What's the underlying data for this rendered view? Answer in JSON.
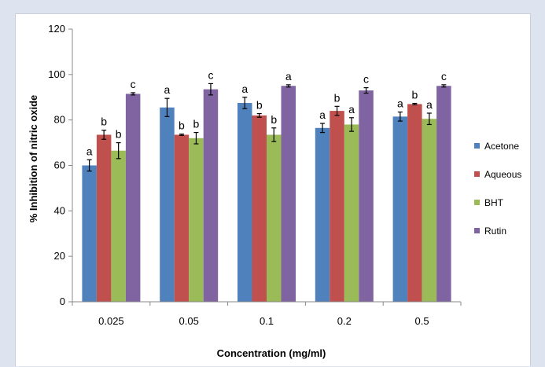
{
  "chart_data": {
    "type": "bar",
    "title": "",
    "xlabel": "Concentration (mg/ml)",
    "ylabel": "% Inhibition of nitric oxide",
    "ylim": [
      0,
      120
    ],
    "yticks": [
      0,
      20,
      40,
      60,
      80,
      100,
      120
    ],
    "grid": false,
    "legend_position": "right",
    "categories": [
      "0.025",
      "0.05",
      "0.1",
      "0.2",
      "0.5"
    ],
    "series": [
      {
        "name": "Acetone",
        "color": "#4f81bd",
        "values": [
          60,
          85.5,
          87.5,
          76.5,
          81.5
        ],
        "errors": [
          2.5,
          4,
          2.5,
          2,
          2
        ],
        "labels": [
          "a",
          "a",
          "a",
          "a",
          "a"
        ]
      },
      {
        "name": "Aqueous",
        "color": "#c0504d",
        "values": [
          73.5,
          73.5,
          82,
          84,
          87
        ],
        "errors": [
          2,
          0.3,
          0.8,
          2,
          0.3
        ],
        "labels": [
          "b",
          "b",
          "b",
          "b",
          "b"
        ]
      },
      {
        "name": "BHT",
        "color": "#9bbb59",
        "values": [
          66.5,
          72,
          73.5,
          78,
          80.5
        ],
        "errors": [
          3.5,
          2.5,
          3,
          3,
          2.5
        ],
        "labels": [
          "b",
          "b",
          "b",
          "a",
          "a"
        ]
      },
      {
        "name": "Rutin",
        "color": "#8064a2",
        "values": [
          91.5,
          93.5,
          95,
          93,
          95
        ],
        "errors": [
          0.5,
          2.5,
          0.5,
          1.2,
          0.5
        ],
        "labels": [
          "c",
          "c",
          "a",
          "c",
          "c"
        ]
      }
    ]
  }
}
